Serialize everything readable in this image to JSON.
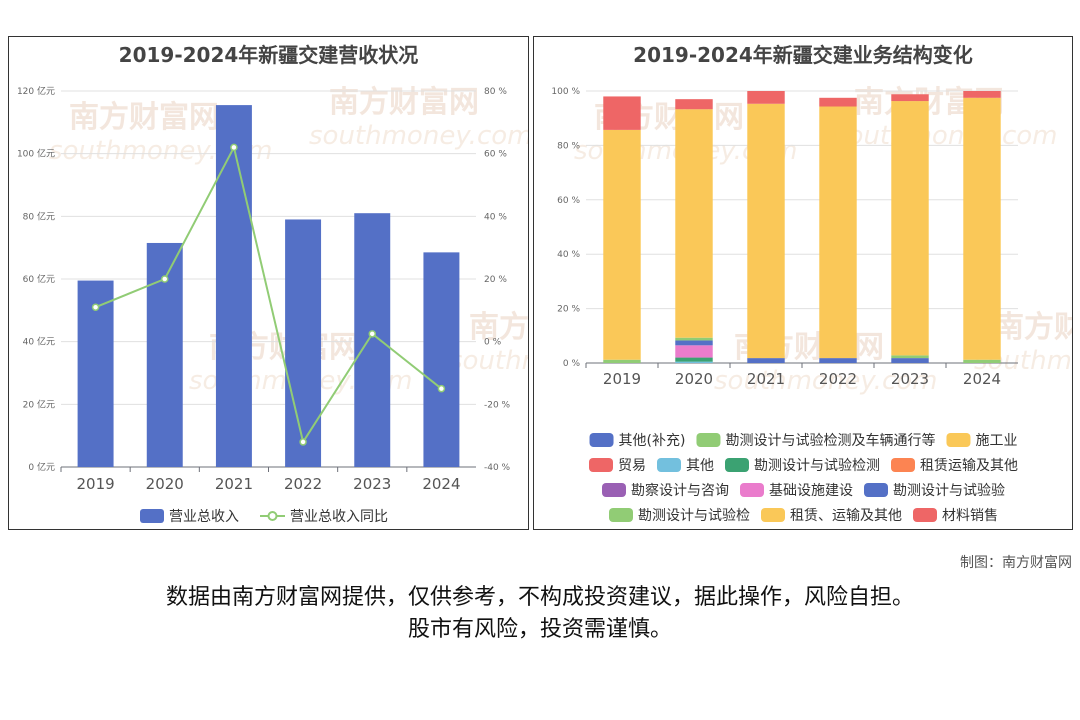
{
  "chart_data": [
    {
      "type": "bar",
      "title": "2019-2024年新疆交建营收状况",
      "categories": [
        "2019",
        "2020",
        "2021",
        "2022",
        "2023",
        "2024"
      ],
      "series": [
        {
          "name": "营业总收入",
          "type": "bar",
          "axis": "left",
          "color": "#5470c6",
          "values": [
            59.5,
            71.5,
            115.5,
            79.0,
            81.0,
            68.5
          ]
        },
        {
          "name": "营业总收入同比",
          "type": "line",
          "axis": "right",
          "color": "#91cc75",
          "values": [
            11,
            20,
            62,
            -32,
            2.5,
            -15
          ]
        }
      ],
      "y_left": {
        "min": 0,
        "max": 120,
        "step": 20,
        "unit": "亿元"
      },
      "y_right": {
        "min": -40,
        "max": 80,
        "step": 20,
        "unit": "%"
      },
      "legend_position": "bottom"
    },
    {
      "type": "bar",
      "stacked": true,
      "title": "2019-2024年新疆交建业务结构变化",
      "categories": [
        "2019",
        "2020",
        "2021",
        "2022",
        "2023",
        "2024"
      ],
      "y": {
        "min": 0,
        "max": 100,
        "step": 20,
        "unit": "%"
      },
      "legend_position": "bottom",
      "series": [
        {
          "name": "其他(补充)",
          "color": "#5470c6",
          "values": [
            0,
            0,
            0,
            0,
            0,
            0
          ]
        },
        {
          "name": "勘测设计与试验检测及车辆通行等",
          "color": "#91cc75",
          "values": [
            0,
            0,
            0,
            0,
            0,
            1.2
          ]
        },
        {
          "name": "施工业",
          "color": "#fac858",
          "values": [
            0,
            0,
            0,
            0,
            0,
            96.3
          ]
        },
        {
          "name": "贸易",
          "color": "#ee6666",
          "values": [
            0,
            0,
            0,
            0,
            0,
            2.5
          ]
        },
        {
          "name": "其他",
          "color": "#73c0de",
          "values": [
            0,
            0.5,
            0,
            0,
            0,
            0
          ]
        },
        {
          "name": "勘测设计与试验检测",
          "color": "#3ba272",
          "values": [
            0,
            1.5,
            0,
            0,
            0,
            0
          ]
        },
        {
          "name": "租赁运输及其他",
          "color": "#fc8452",
          "values": [
            0,
            0,
            0,
            0,
            0,
            0
          ]
        },
        {
          "name": "勘察设计与咨询",
          "color": "#9a60b4",
          "values": [
            0,
            0,
            0,
            0,
            0,
            0
          ]
        },
        {
          "name": "基础设施建设",
          "color": "#ea7ccc",
          "values": [
            0,
            4.5,
            0,
            0,
            0,
            0
          ]
        },
        {
          "name": "勘测设计与试验验",
          "color": "#5470c6",
          "values": [
            0,
            1.8,
            1.8,
            1.8,
            1.8,
            0
          ]
        },
        {
          "name": "勘测设计与试验检",
          "color": "#91cc75",
          "values": [
            1.2,
            1.0,
            0,
            0,
            1.0,
            0
          ]
        },
        {
          "name": "租赁、运输及其他",
          "color": "#fac858",
          "values": [
            84.5,
            84.0,
            93.5,
            92.5,
            93.5,
            0
          ]
        },
        {
          "name": "材料销售",
          "color": "#ee6666",
          "values": [
            12.3,
            3.7,
            4.7,
            3.2,
            2.5,
            0
          ]
        }
      ]
    }
  ],
  "footer": {
    "credit": "制图：南方财富网",
    "disclaimer_line1": "数据由南方财富网提供，仅供参考，不构成投资建议，据此操作，风险自担。",
    "disclaimer_line2": "股市有风险，投资需谨慎。"
  },
  "watermark": {
    "text": "南方财富网",
    "sub": "southmoney.com"
  }
}
